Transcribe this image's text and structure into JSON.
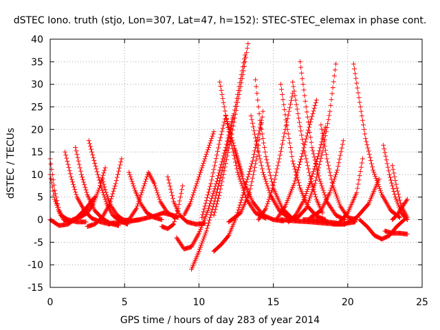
{
  "chart_data": {
    "type": "scatter",
    "title": "dSTEC Iono. truth (stjo, Lon=307, Lat=47, h=152): STEC-STEC_elemax in phase cont.",
    "xlabel": "GPS time / hours of day 283 of year 2014",
    "ylabel": "dSTEC  / TECUs",
    "xlim": [
      0,
      25
    ],
    "ylim": [
      -15,
      40
    ],
    "x_ticks": [
      "0",
      "5",
      "10",
      "15",
      "20",
      "25"
    ],
    "y_ticks": [
      "-15",
      "-10",
      "-5",
      "0",
      "5",
      "10",
      "15",
      "20",
      "25",
      "30",
      "35",
      "40"
    ],
    "grid": true,
    "marker": "plus",
    "marker_color": "#ff0000",
    "series": [
      {
        "x": [
          0.0,
          0.3,
          0.6,
          0.9,
          1.2,
          1.5,
          1.8,
          2.1,
          2.5
        ],
        "y": [
          13.5,
          6.5,
          2.0,
          0.0,
          -0.5,
          -0.3,
          0.3,
          1.2,
          2.5
        ]
      },
      {
        "x": [
          0.0,
          0.3,
          0.7,
          1.2,
          1.8,
          2.4
        ],
        "y": [
          10.0,
          4.5,
          1.0,
          0.0,
          -0.5,
          -0.5
        ]
      },
      {
        "x": [
          0.0,
          0.6,
          1.2,
          1.8,
          2.4,
          3.0
        ],
        "y": [
          0.0,
          -1.3,
          -1.0,
          0.5,
          2.5,
          5.0
        ]
      },
      {
        "x": [
          1.0,
          1.4,
          1.8,
          2.3,
          2.8,
          3.4,
          4.0
        ],
        "y": [
          15.0,
          9.5,
          5.0,
          2.0,
          0.3,
          -0.5,
          -1.0
        ]
      },
      {
        "x": [
          1.7,
          2.1,
          2.5,
          3.0,
          3.5,
          4.0,
          4.6
        ],
        "y": [
          16.0,
          10.0,
          5.5,
          2.0,
          0.3,
          -0.8,
          -1.3
        ]
      },
      {
        "x": [
          2.6,
          3.0,
          3.4,
          3.8,
          4.2,
          4.7,
          5.2
        ],
        "y": [
          17.5,
          12.5,
          7.5,
          3.5,
          1.0,
          -0.3,
          -1.0
        ]
      },
      {
        "x": [
          1.5,
          2.0,
          2.5,
          2.9,
          3.3,
          3.7
        ],
        "y": [
          0.0,
          0.5,
          1.5,
          3.5,
          7.0,
          11.5
        ]
      },
      {
        "x": [
          3.5,
          3.8,
          4.1,
          4.5,
          4.9,
          5.4,
          6.0
        ],
        "y": [
          9.0,
          5.5,
          3.0,
          1.0,
          0.0,
          -0.3,
          0.0
        ]
      },
      {
        "x": [
          2.5,
          3.0,
          3.5,
          4.0,
          4.4,
          4.8
        ],
        "y": [
          -1.5,
          -1.0,
          0.5,
          3.5,
          8.0,
          13.5
        ]
      },
      {
        "x": [
          5.3,
          5.7,
          6.1,
          6.5,
          7.0,
          7.5
        ],
        "y": [
          10.5,
          6.5,
          3.5,
          1.5,
          0.5,
          0.0
        ]
      },
      {
        "x": [
          4.8,
          5.3,
          5.8,
          6.2,
          6.6,
          7.0,
          7.4,
          7.9,
          8.4
        ],
        "y": [
          -0.5,
          0.0,
          2.5,
          6.5,
          10.5,
          8.0,
          4.0,
          1.5,
          0.5
        ]
      },
      {
        "x": [
          4.0,
          5.0,
          6.0,
          7.0,
          7.6,
          8.2,
          8.6
        ],
        "y": [
          -0.8,
          -0.5,
          0.0,
          0.8,
          1.5,
          1.0,
          0.5
        ]
      },
      {
        "x": [
          7.9,
          8.3,
          8.7,
          9.2,
          9.8,
          10.4
        ],
        "y": [
          9.5,
          4.0,
          1.0,
          -0.5,
          -1.0,
          -0.8
        ]
      },
      {
        "x": [
          7.5,
          7.9,
          8.3,
          8.6,
          8.9
        ],
        "y": [
          -1.5,
          -2.0,
          -1.0,
          2.5,
          7.5
        ]
      },
      {
        "x": [
          8.5,
          9.0,
          9.5,
          10.0,
          10.6,
          11.2,
          11.8,
          12.3
        ],
        "y": [
          -4.0,
          -6.5,
          -6.0,
          -3.0,
          2.0,
          8.5,
          16.0,
          23.0
        ]
      },
      {
        "x": [
          9.5,
          10.0,
          10.5,
          11.0,
          11.5,
          12.0,
          12.5,
          13.1
        ],
        "y": [
          -11.0,
          -7.0,
          -2.5,
          3.5,
          10.0,
          17.5,
          26.0,
          36.5
        ]
      },
      {
        "x": [
          9.0,
          9.4,
          9.8,
          10.2,
          10.6,
          11.0
        ],
        "y": [
          1.0,
          3.5,
          7.5,
          11.5,
          15.5,
          19.5
        ]
      },
      {
        "x": [
          11.0,
          11.5,
          12.0,
          12.5,
          13.0,
          13.6,
          14.2
        ],
        "y": [
          -7.0,
          -5.5,
          -3.5,
          0.5,
          6.0,
          13.0,
          22.0
        ]
      },
      {
        "x": [
          11.0,
          11.4,
          11.8,
          12.2,
          12.6,
          13.0,
          13.3
        ],
        "y": [
          1.0,
          6.0,
          12.5,
          19.0,
          26.0,
          33.0,
          39.0
        ]
      },
      {
        "x": [
          10.2,
          10.8,
          11.4,
          11.8,
          12.3,
          12.9
        ],
        "y": [
          0.5,
          8.0,
          17.5,
          23.0,
          17.0,
          10.0
        ]
      },
      {
        "x": [
          11.4,
          12.0,
          12.6,
          13.2,
          13.8,
          14.5
        ],
        "y": [
          30.5,
          19.5,
          10.5,
          4.5,
          1.5,
          0.3
        ]
      },
      {
        "x": [
          12.4,
          13.0,
          13.6,
          14.3,
          15.0,
          15.7
        ],
        "y": [
          15.5,
          8.5,
          4.0,
          1.0,
          0.0,
          -0.3
        ]
      },
      {
        "x": [
          13.5,
          13.9,
          14.3,
          14.8,
          15.4,
          16.0,
          16.6
        ],
        "y": [
          23.0,
          16.5,
          10.5,
          5.5,
          2.0,
          0.5,
          0.0
        ]
      },
      {
        "x": [
          13.8,
          14.1,
          14.5,
          15.0,
          15.6,
          16.2
        ],
        "y": [
          31.0,
          22.0,
          14.0,
          7.0,
          2.5,
          0.5
        ]
      },
      {
        "x": [
          12.0,
          12.8,
          13.4,
          13.9,
          14.3
        ],
        "y": [
          -0.5,
          1.5,
          6.0,
          14.0,
          24.0
        ]
      },
      {
        "x": [
          15.5,
          15.9,
          16.3,
          16.8,
          17.3,
          17.9,
          18.5
        ],
        "y": [
          30.0,
          21.0,
          13.0,
          7.0,
          3.0,
          0.8,
          0.0
        ]
      },
      {
        "x": [
          14.0,
          14.5,
          15.0,
          15.4,
          15.8,
          16.3
        ],
        "y": [
          0.0,
          2.5,
          7.5,
          13.5,
          20.0,
          28.0
        ]
      },
      {
        "x": [
          16.8,
          17.2,
          17.6,
          18.1,
          18.6,
          19.2,
          19.8
        ],
        "y": [
          35.0,
          25.0,
          16.0,
          9.0,
          4.0,
          1.0,
          0.0
        ]
      },
      {
        "x": [
          16.3,
          16.7,
          17.1,
          17.5,
          17.9,
          18.3
        ],
        "y": [
          30.5,
          22.5,
          15.0,
          9.0,
          4.5,
          1.5
        ]
      },
      {
        "x": [
          15.2,
          15.8,
          16.4,
          16.9,
          17.4,
          17.9
        ],
        "y": [
          0.0,
          3.0,
          8.0,
          14.0,
          20.5,
          26.5
        ]
      },
      {
        "x": [
          18.2,
          18.6,
          19.0,
          19.5,
          20.0,
          20.6
        ],
        "y": [
          21.0,
          13.5,
          7.5,
          3.0,
          0.5,
          0.0
        ]
      },
      {
        "x": [
          16.0,
          16.5,
          17.0,
          17.5,
          18.0,
          18.5
        ],
        "y": [
          -0.5,
          1.0,
          4.0,
          8.5,
          14.0,
          20.5
        ]
      },
      {
        "x": [
          16.5,
          17.2,
          17.8,
          18.3,
          18.8,
          19.2
        ],
        "y": [
          0.0,
          2.5,
          8.0,
          15.0,
          24.0,
          34.5
        ]
      },
      {
        "x": [
          17.5,
          18.2,
          18.8,
          19.3,
          19.7
        ],
        "y": [
          0.5,
          2.0,
          6.0,
          11.0,
          17.5
        ]
      },
      {
        "x": [
          20.4,
          20.8,
          21.2,
          21.7,
          22.3,
          22.9,
          23.5
        ],
        "y": [
          34.5,
          26.0,
          18.0,
          11.0,
          5.5,
          2.0,
          0.5
        ]
      },
      {
        "x": [
          17.0,
          17.8,
          18.6,
          19.4,
          20.0,
          20.6,
          21.0
        ],
        "y": [
          0.0,
          0.0,
          -0.5,
          -0.8,
          1.5,
          6.0,
          13.5
        ]
      },
      {
        "x": [
          15.5,
          16.5,
          17.5,
          18.5,
          19.5,
          20.5
        ],
        "y": [
          0.0,
          -0.3,
          -0.5,
          -0.8,
          -1.0,
          -0.5
        ]
      },
      {
        "x": [
          19.0,
          19.8,
          20.6,
          21.4,
          22.1
        ],
        "y": [
          -1.0,
          -1.0,
          0.5,
          3.5,
          9.0
        ]
      },
      {
        "x": [
          20.8,
          21.3,
          21.8,
          22.3,
          22.8,
          23.3,
          23.8
        ],
        "y": [
          0.0,
          -1.5,
          -3.5,
          -4.3,
          -3.5,
          -1.5,
          0.0
        ]
      },
      {
        "x": [
          22.4,
          22.8,
          23.2,
          23.6,
          24.0
        ],
        "y": [
          16.5,
          10.0,
          5.0,
          1.5,
          0.0
        ]
      },
      {
        "x": [
          23.0,
          23.3,
          23.6,
          24.0
        ],
        "y": [
          12.0,
          7.0,
          3.0,
          0.5
        ]
      },
      {
        "x": [
          22.5,
          23.0,
          23.5,
          24.0
        ],
        "y": [
          -2.5,
          -3.0,
          -3.0,
          -3.2
        ]
      },
      {
        "x": [
          23.0,
          23.3,
          23.6,
          24.0
        ],
        "y": [
          0.0,
          1.0,
          2.5,
          4.5
        ]
      }
    ]
  }
}
